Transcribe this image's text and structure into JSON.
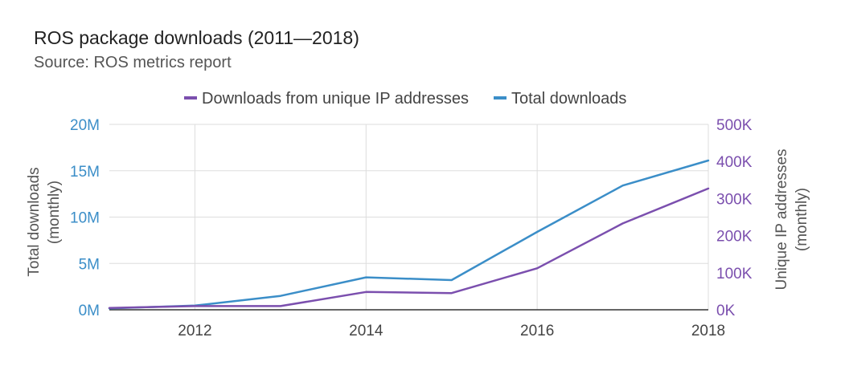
{
  "title": "ROS package downloads (2011—2018)",
  "subtitle": "Source: ROS metrics report",
  "chart_data": {
    "type": "line",
    "x": [
      2011,
      2012,
      2013,
      2014,
      2015,
      2016,
      2017,
      2018
    ],
    "x_ticks": [
      "2012",
      "2014",
      "2016",
      "2018"
    ],
    "x_tick_values": [
      2012,
      2014,
      2016,
      2018
    ],
    "xlim": [
      2011,
      2018
    ],
    "series": [
      {
        "name": "Downloads from unique IP addresses",
        "axis": "right",
        "color": "#7b4fae",
        "values": [
          5000,
          10000,
          10000,
          48000,
          45000,
          112000,
          233000,
          327000
        ]
      },
      {
        "name": "Total downloads",
        "axis": "left",
        "color": "#3b8ec8",
        "values": [
          150000,
          450000,
          1500000,
          3500000,
          3200000,
          8400000,
          13400000,
          16100000
        ]
      }
    ],
    "y_left": {
      "label_line1": "Total downloads",
      "label_line2": "(monthly)",
      "ylim": [
        0,
        20000000
      ],
      "ticks": [
        "0M",
        "5M",
        "10M",
        "15M",
        "20M"
      ],
      "tick_values": [
        0,
        5000000,
        10000000,
        15000000,
        20000000
      ],
      "color": "#3b8ec8"
    },
    "y_right": {
      "label_line1": "Unique IP addresses",
      "label_line2": "(monthly)",
      "ylim": [
        0,
        500000
      ],
      "ticks": [
        "0K",
        "100K",
        "200K",
        "300K",
        "400K",
        "500K"
      ],
      "tick_values": [
        0,
        100000,
        200000,
        300000,
        400000,
        500000
      ],
      "color": "#7b4fae"
    },
    "grid": true,
    "legend_position": "top"
  }
}
